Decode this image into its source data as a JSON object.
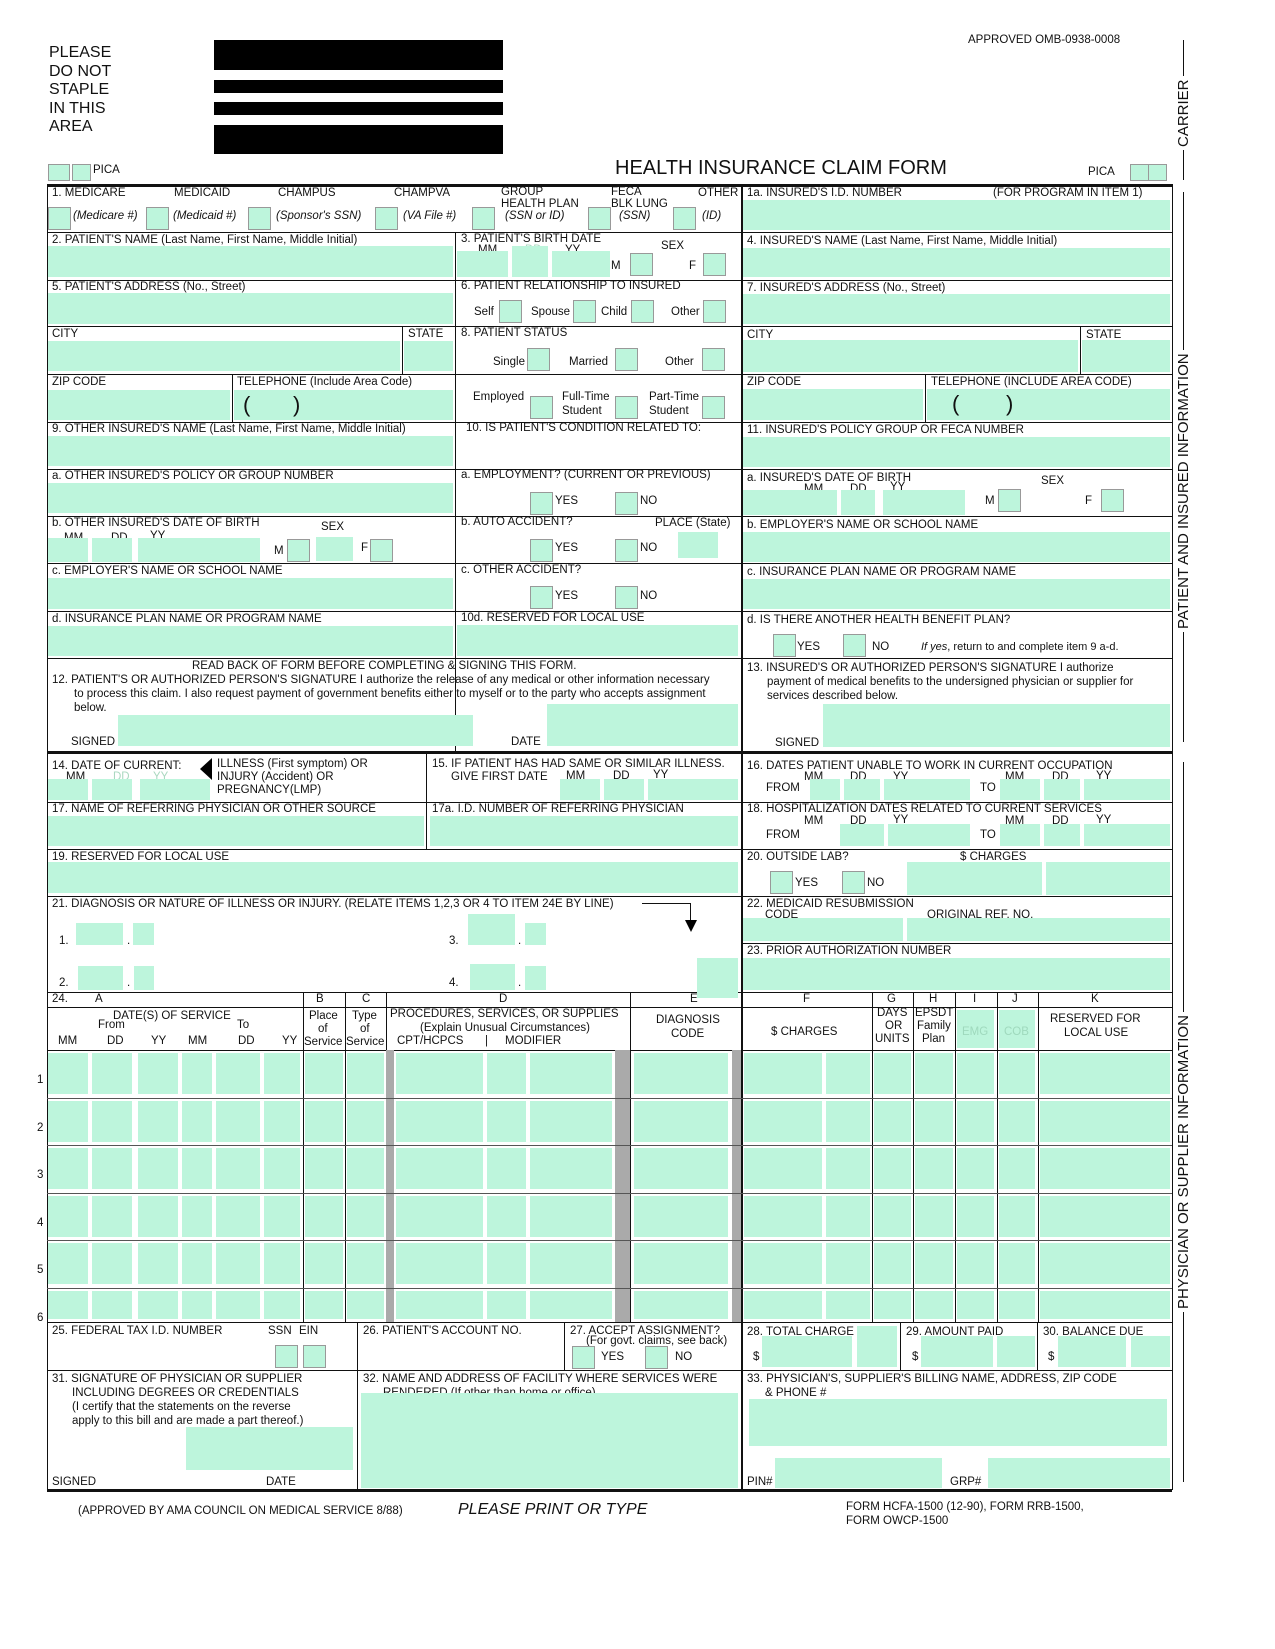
{
  "header": {
    "notice": [
      "PLEASE",
      "DO NOT",
      "STAPLE",
      "IN THIS",
      "AREA"
    ],
    "approved": "APPROVED OMB-0938-0008",
    "title": "HEALTH INSURANCE CLAIM FORM",
    "pica": "PICA"
  },
  "side": {
    "carrier": "CARRIER",
    "patient": "PATIENT AND INSURED INFORMATION",
    "physician": "PHYSICIAN OR SUPPLIER INFORMATION"
  },
  "i1": {
    "medicare": "1.  MEDICARE",
    "medicaid": "MEDICAID",
    "champus": "CHAMPUS",
    "champva": "CHAMPVA",
    "group": "GROUP",
    "health_plan": "HEALTH PLAN",
    "feca": "FECA",
    "blk_lung": "BLK LUNG",
    "other": "OTHER",
    "s_medicare": "(Medicare #)",
    "s_medicaid": "(Medicaid  #)",
    "s_sponsor": "(Sponsor's SSN)",
    "s_va": "(VA File  #)",
    "s_ssnid": "(SSN or ID)",
    "s_ssn": "(SSN)",
    "s_id": "(ID)"
  },
  "i1a": {
    "label": "1a. INSURED'S I.D. NUMBER",
    "note": "(FOR PROGRAM IN ITEM 1)"
  },
  "i2": "2. PATIENT'S NAME (Last Name, First Name, Middle Initial)",
  "i3": {
    "label": "3. PATIENT'S BIRTH DATE",
    "mm": "MM",
    "dd": "DD",
    "yy": "YY",
    "sex": "SEX",
    "m": "M",
    "f": "F"
  },
  "i4": "4. INSURED'S NAME (Last Name, First Name, Middle Initial)",
  "i5": "5. PATIENT'S ADDRESS (No., Street)",
  "i6": {
    "label": "6. PATIENT RELATIONSHIP TO INSURED",
    "self": "Self",
    "spouse": "Spouse",
    "child": "Child",
    "other": "Other"
  },
  "i7": "7. INSURED'S ADDRESS (No., Street)",
  "city": "CITY",
  "state": "STATE",
  "zip": "ZIP CODE",
  "tel": "TELEPHONE (Include Area Code)",
  "tel_r": "TELEPHONE (INCLUDE AREA CODE)",
  "paren_l": "(",
  "paren_r": ")",
  "i8": {
    "label": "8. PATIENT STATUS",
    "single": "Single",
    "married": "Married",
    "other": "Other",
    "employed": "Employed",
    "fulltime": "Full-Time",
    "parttime": "Part-Time",
    "student": "Student"
  },
  "i9": {
    "label": "9. OTHER INSURED'S NAME (Last Name, First Name, Middle Initial)",
    "a": "a. OTHER INSURED'S POLICY OR GROUP NUMBER",
    "b": "b. OTHER INSURED'S DATE OF BIRTH",
    "c": "c. EMPLOYER'S NAME OR SCHOOL NAME",
    "d": "d. INSURANCE PLAN NAME OR PROGRAM NAME"
  },
  "i10": {
    "label": "10. IS PATIENT'S CONDITION RELATED TO:",
    "a": "a. EMPLOYMENT? (CURRENT OR PREVIOUS)",
    "b": "b. AUTO ACCIDENT?",
    "place": "PLACE (State)",
    "c": "c. OTHER ACCIDENT?",
    "d": "10d. RESERVED FOR LOCAL USE",
    "yes": "YES",
    "no": "NO"
  },
  "i11": {
    "label": "11. INSURED'S POLICY GROUP OR FECA NUMBER",
    "a": "a. INSURED'S DATE OF BIRTH",
    "b": "b. EMPLOYER'S NAME OR SCHOOL NAME",
    "c": "c. INSURANCE PLAN NAME OR PROGRAM NAME",
    "d": "d. IS THERE ANOTHER HEALTH BENEFIT PLAN?",
    "ifyes": "If yes",
    "ifyes_rest": ", return to and complete item 9 a-d."
  },
  "i12": {
    "readback": "READ BACK OF FORM BEFORE COMPLETING & SIGNING THIS FORM.",
    "l1": "12. PATIENT'S OR AUTHORIZED PERSON'S SIGNATURE  I authorize the release of any medical or other information necessary",
    "l2": "to process this claim. I also request payment of government benefits either to myself or to the party who accepts assignment",
    "l3": "below.",
    "signed": "SIGNED",
    "date": "DATE"
  },
  "i13": {
    "l1": "13. INSURED'S OR AUTHORIZED PERSON'S SIGNATURE I authorize",
    "l2": "payment of medical benefits to the undersigned physician or supplier for",
    "l3": "services described below.",
    "signed": "SIGNED"
  },
  "i14": {
    "label": "14. DATE OF CURRENT:",
    "l1": "ILLNESS (First symptom) OR",
    "l2": "INJURY (Accident) OR",
    "l3": "PREGNANCY(LMP)"
  },
  "i15": {
    "label": "15. IF PATIENT HAS HAD SAME OR SIMILAR ILLNESS.",
    "give": "GIVE FIRST DATE"
  },
  "i16": {
    "label": "16. DATES PATIENT UNABLE TO WORK IN CURRENT OCCUPATION",
    "from": "FROM",
    "to": "TO"
  },
  "i17": "17. NAME OF REFERRING PHYSICIAN OR OTHER SOURCE",
  "i17a": "17a. I.D. NUMBER OF REFERRING PHYSICIAN",
  "i18": "18. HOSPITALIZATION DATES RELATED TO CURRENT SERVICES",
  "i19": "19. RESERVED FOR LOCAL USE",
  "i20": {
    "label": "20. OUTSIDE LAB?",
    "charges": "$ CHARGES"
  },
  "i21": {
    "label": "21. DIAGNOSIS OR NATURE OF ILLNESS OR INJURY. (RELATE ITEMS 1,2,3 OR 4 TO ITEM 24E BY LINE)",
    "n1": "1.",
    "n2": "2.",
    "n3": "3.",
    "n4": "4.",
    "dot": "."
  },
  "i22": {
    "label": "22. MEDICAID RESUBMISSION",
    "code": "CODE",
    "orig": "ORIGINAL REF. NO."
  },
  "i23": "23. PRIOR AUTHORIZATION NUMBER",
  "i24": {
    "num": "24.",
    "A": "A",
    "B": "B",
    "C": "C",
    "D": "D",
    "E": "E",
    "F": "F",
    "G": "G",
    "H": "H",
    "I": "I",
    "J": "J",
    "K": "K",
    "dates": "DATE(S) OF SERVICE",
    "from": "From",
    "to": "To",
    "place": [
      "Place",
      "of",
      "Service"
    ],
    "type": [
      "Type",
      "of",
      "Service"
    ],
    "proc": "PROCEDURES, SERVICES, OR SUPPLIES",
    "explain": "(Explain Unusual Circumstances)",
    "cpt": "CPT/HCPCS",
    "bar": "|",
    "modifier": "MODIFIER",
    "diag": [
      "DIAGNOSIS",
      "CODE"
    ],
    "charges": "$ CHARGES",
    "days": [
      "DAYS",
      "OR",
      "UNITS"
    ],
    "epsdt": [
      "EPSDT",
      "Family",
      "Plan"
    ],
    "emg": "EMG",
    "cob": "COB",
    "reserved": [
      "RESERVED FOR",
      "LOCAL USE"
    ],
    "lines": [
      "1",
      "2",
      "3",
      "4",
      "5",
      "6"
    ]
  },
  "i25": {
    "label": "25. FEDERAL TAX I.D. NUMBER",
    "ssn": "SSN",
    "ein": "EIN"
  },
  "i26": "26. PATIENT'S ACCOUNT NO.",
  "i27": {
    "label": "27. ACCEPT ASSIGNMENT?",
    "note": "(For govt. claims, see back)"
  },
  "i28": "28. TOTAL CHARGE",
  "i29": "29. AMOUNT PAID",
  "i30": "30. BALANCE DUE",
  "dollar": "$",
  "i31": {
    "l1": "31. SIGNATURE OF PHYSICIAN OR SUPPLIER",
    "l2": "INCLUDING DEGREES OR CREDENTIALS",
    "l3": "(I certify that the statements on the reverse",
    "l4": "apply to this bill and are made a part thereof.)"
  },
  "i32": {
    "l1": "32. NAME AND ADDRESS OF FACILITY WHERE SERVICES WERE",
    "l2": "RENDERED (If other than home or office)"
  },
  "i33": {
    "l1": "33. PHYSICIAN'S, SUPPLIER'S BILLING NAME, ADDRESS, ZIP CODE",
    "l2": "& PHONE #",
    "pin": "PIN#",
    "grp": "GRP#"
  },
  "footer": {
    "ama": "(APPROVED BY AMA COUNCIL ON MEDICAL SERVICE 8/88)",
    "print": "PLEASE PRINT OR TYPE",
    "form1": "FORM HCFA-1500 (12-90),   FORM RRB-1500,",
    "form2": "FORM OWCP-1500"
  },
  "colors": {
    "field": "#bdf5dc"
  }
}
